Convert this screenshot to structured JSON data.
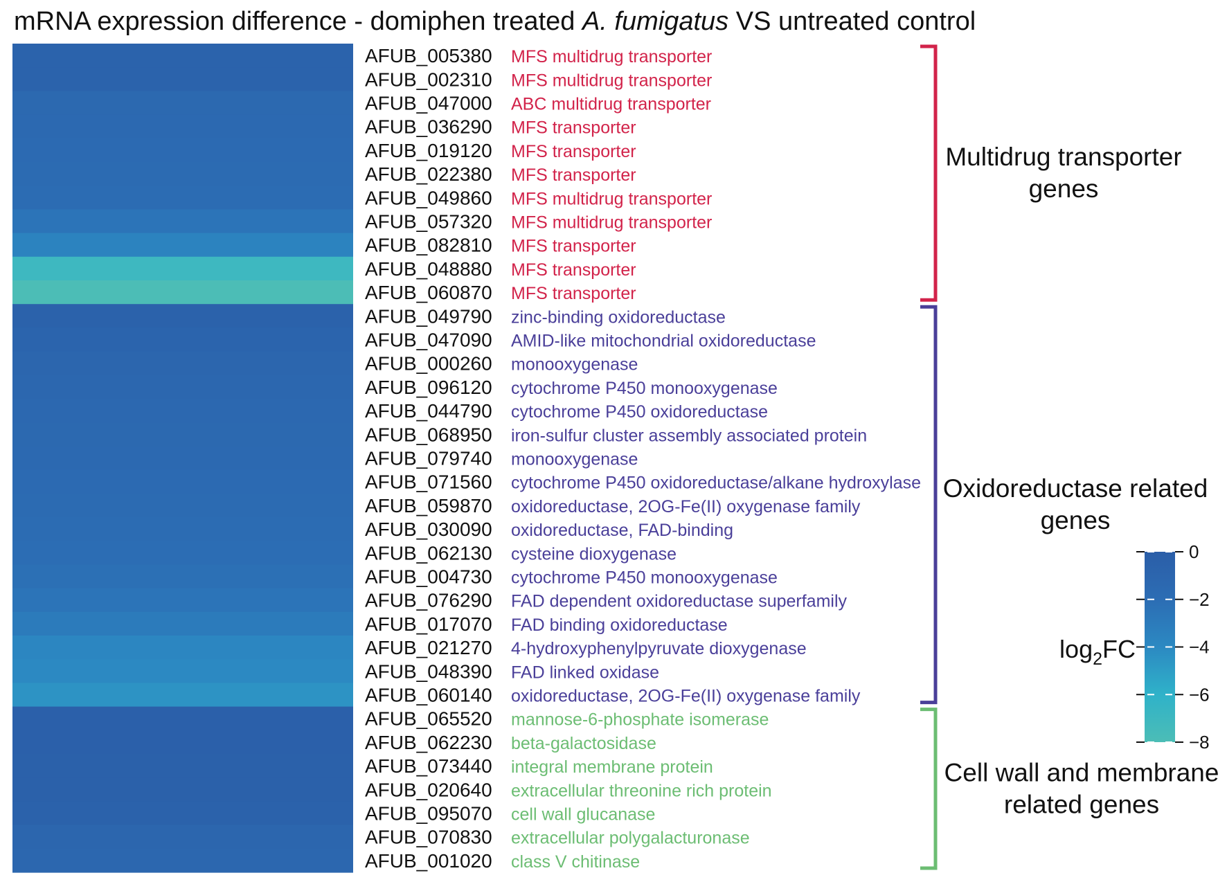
{
  "chart_data": {
    "type": "heatmap",
    "title_parts": {
      "prefix": "mRNA expression difference - domiphen treated ",
      "italic": "A. fumigatus",
      "suffix": " VS untreated control"
    },
    "value_label": "log2FC",
    "legend_title": {
      "main": "log",
      "sub": "2",
      "end": "FC"
    },
    "color_scale": {
      "range": [
        -8,
        0
      ],
      "stops": [
        {
          "value": 0,
          "color": "#2b5ea8"
        },
        {
          "value": -2,
          "color": "#2c6db4"
        },
        {
          "value": -4,
          "color": "#2c89c2"
        },
        {
          "value": -6,
          "color": "#2fb2c9"
        },
        {
          "value": -8,
          "color": "#4cbdb6"
        }
      ],
      "ticks": [
        0,
        -2,
        -4,
        -6,
        -8
      ],
      "tick_labels": [
        "0",
        "−2",
        "−4",
        "−6",
        "−8"
      ]
    },
    "rows": [
      {
        "gene": "AFUB_005380",
        "description": "MFS multidrug transporter",
        "group": "transporter",
        "log2fc": -0.6
      },
      {
        "gene": "AFUB_002310",
        "description": "MFS multidrug transporter",
        "group": "transporter",
        "log2fc": -0.7
      },
      {
        "gene": "AFUB_047000",
        "description": "ABC multidrug transporter",
        "group": "transporter",
        "log2fc": -1.4
      },
      {
        "gene": "AFUB_036290",
        "description": "MFS transporter",
        "group": "transporter",
        "log2fc": -1.5
      },
      {
        "gene": "AFUB_019120",
        "description": "MFS transporter",
        "group": "transporter",
        "log2fc": -1.6
      },
      {
        "gene": "AFUB_022380",
        "description": "MFS transporter",
        "group": "transporter",
        "log2fc": -1.7
      },
      {
        "gene": "AFUB_049860",
        "description": "MFS multidrug transporter",
        "group": "transporter",
        "log2fc": -1.9
      },
      {
        "gene": "AFUB_057320",
        "description": "MFS multidrug transporter",
        "group": "transporter",
        "log2fc": -2.5
      },
      {
        "gene": "AFUB_082810",
        "description": "MFS transporter",
        "group": "transporter",
        "log2fc": -3.6
      },
      {
        "gene": "AFUB_048880",
        "description": "MFS transporter",
        "group": "transporter",
        "log2fc": -7.0
      },
      {
        "gene": "AFUB_060870",
        "description": "MFS transporter",
        "group": "transporter",
        "log2fc": -8.0
      },
      {
        "gene": "AFUB_049790",
        "description": "zinc-binding oxidoreductase",
        "group": "oxidoreductase",
        "log2fc": -0.5
      },
      {
        "gene": "AFUB_047090",
        "description": "AMID-like mitochondrial oxidoreductase",
        "group": "oxidoreductase",
        "log2fc": -0.8
      },
      {
        "gene": "AFUB_000260",
        "description": "monooxygenase",
        "group": "oxidoreductase",
        "log2fc": -1.0
      },
      {
        "gene": "AFUB_096120",
        "description": "cytochrome P450 monooxygenase",
        "group": "oxidoreductase",
        "log2fc": -1.2
      },
      {
        "gene": "AFUB_044790",
        "description": "cytochrome P450 oxidoreductase",
        "group": "oxidoreductase",
        "log2fc": -1.3
      },
      {
        "gene": "AFUB_068950",
        "description": "iron-sulfur cluster assembly associated protein",
        "group": "oxidoreductase",
        "log2fc": -1.4
      },
      {
        "gene": "AFUB_079740",
        "description": "monooxygenase",
        "group": "oxidoreductase",
        "log2fc": -1.5
      },
      {
        "gene": "AFUB_071560",
        "description": "cytochrome P450 oxidoreductase/alkane hydroxylase",
        "group": "oxidoreductase",
        "log2fc": -1.6
      },
      {
        "gene": "AFUB_059870",
        "description": "oxidoreductase, 2OG-Fe(II) oxygenase family",
        "group": "oxidoreductase",
        "log2fc": -1.7
      },
      {
        "gene": "AFUB_030090",
        "description": "oxidoreductase, FAD-binding",
        "group": "oxidoreductase",
        "log2fc": -1.8
      },
      {
        "gene": "AFUB_062130",
        "description": "cysteine dioxygenase",
        "group": "oxidoreductase",
        "log2fc": -2.0
      },
      {
        "gene": "AFUB_004730",
        "description": "cytochrome P450 monooxygenase",
        "group": "oxidoreductase",
        "log2fc": -2.2
      },
      {
        "gene": "AFUB_076290",
        "description": "FAD dependent oxidoreductase superfamily",
        "group": "oxidoreductase",
        "log2fc": -2.5
      },
      {
        "gene": "AFUB_017070",
        "description": "FAD binding oxidoreductase",
        "group": "oxidoreductase",
        "log2fc": -3.0
      },
      {
        "gene": "AFUB_021270",
        "description": "4-hydroxyphenylpyruvate dioxygenase",
        "group": "oxidoreductase",
        "log2fc": -3.8
      },
      {
        "gene": "AFUB_048390",
        "description": "FAD linked oxidase",
        "group": "oxidoreductase",
        "log2fc": -4.0
      },
      {
        "gene": "AFUB_060140",
        "description": "oxidoreductase, 2OG-Fe(II) oxygenase family",
        "group": "oxidoreductase",
        "log2fc": -4.5
      },
      {
        "gene": "AFUB_065520",
        "description": "mannose-6-phosphate isomerase",
        "group": "cellwall",
        "log2fc": -0.3
      },
      {
        "gene": "AFUB_062230",
        "description": "beta-galactosidase",
        "group": "cellwall",
        "log2fc": -0.3
      },
      {
        "gene": "AFUB_073440",
        "description": "integral membrane protein",
        "group": "cellwall",
        "log2fc": -0.4
      },
      {
        "gene": "AFUB_020640",
        "description": "extracellular threonine rich protein",
        "group": "cellwall",
        "log2fc": -0.4
      },
      {
        "gene": "AFUB_095070",
        "description": "cell wall glucanase",
        "group": "cellwall",
        "log2fc": -0.5
      },
      {
        "gene": "AFUB_070830",
        "description": "extracellular polygalacturonase",
        "group": "cellwall",
        "log2fc": -1.0
      },
      {
        "gene": "AFUB_001020",
        "description": "class V chitinase",
        "group": "cellwall",
        "log2fc": -1.2
      }
    ],
    "groups": [
      {
        "id": "transporter",
        "label_lines": [
          "Multidrug transporter",
          "genes"
        ],
        "color": "#d2234a"
      },
      {
        "id": "oxidoreductase",
        "label_lines": [
          "Oxidoreductase related",
          "genes"
        ],
        "color": "#4a3f99"
      },
      {
        "id": "cellwall",
        "label_lines": [
          "Cell wall and membrane",
          "related genes"
        ],
        "color": "#6cbd73"
      }
    ]
  }
}
